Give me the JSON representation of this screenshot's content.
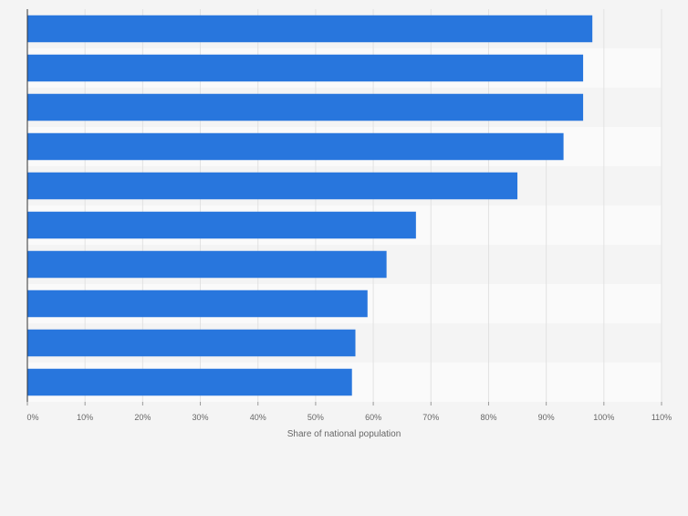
{
  "chart_data": {
    "type": "bar",
    "orientation": "horizontal",
    "title": "",
    "xlabel": "Share of national population",
    "ylabel": "",
    "categories": [
      "",
      "",
      "",
      "",
      "",
      "",
      "",
      "",
      "",
      ""
    ],
    "values": [
      98,
      96.4,
      96.4,
      93,
      85,
      67.4,
      62.3,
      59,
      56.9,
      56.3
    ],
    "xlim": [
      0,
      110
    ],
    "x_ticks": [
      0,
      10,
      20,
      30,
      40,
      50,
      60,
      70,
      80,
      90,
      100,
      110
    ],
    "x_tick_labels": [
      "0%",
      "10%",
      "20%",
      "30%",
      "40%",
      "50%",
      "60%",
      "70%",
      "80%",
      "90%",
      "100%",
      "110%"
    ],
    "grid": true,
    "bar_color": "#2876dd",
    "band_colors": [
      "#f4f4f4",
      "#fafafa"
    ]
  }
}
